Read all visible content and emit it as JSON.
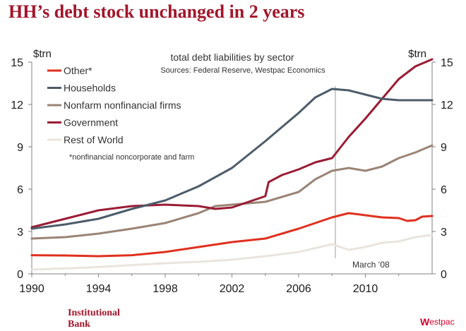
{
  "headline": "HH’s debt stock unchanged in 2 years",
  "footer": {
    "line1": "Institutional",
    "line2": "Bank",
    "logo_mark": "W",
    "logo_text": "estpac"
  },
  "colors": {
    "headline": "#a3162b",
    "brand": "#d5002b"
  },
  "chart_data": {
    "type": "line",
    "title": "total debt liabilities by sector",
    "subtitle": "Sources: Federal Reserve, Westpac Economics",
    "ylabel_left": "$trn",
    "ylabel_right": "$trn",
    "note": "*nonfinancial noncorporate and farm",
    "annotation": "March ‘08",
    "annotation_x": 2008.2,
    "xlim": [
      1990,
      2014
    ],
    "ylim": [
      0,
      15
    ],
    "xticks": [
      "1990",
      "1994",
      "1998",
      "2002",
      "2006",
      "2010"
    ],
    "yticks": [
      "0",
      "3",
      "6",
      "9",
      "12",
      "15"
    ],
    "grid": false,
    "legend_position": "top-left",
    "series": [
      {
        "name": "Other*",
        "color": "#e0301e",
        "points": [
          [
            1990,
            1.32
          ],
          [
            1992,
            1.3
          ],
          [
            1994,
            1.25
          ],
          [
            1996,
            1.32
          ],
          [
            1998,
            1.55
          ],
          [
            2000,
            1.9
          ],
          [
            2002,
            2.25
          ],
          [
            2004,
            2.5
          ],
          [
            2006,
            3.2
          ],
          [
            2008,
            4.0
          ],
          [
            2009,
            4.3
          ],
          [
            2010,
            4.15
          ],
          [
            2011,
            4.0
          ],
          [
            2012,
            3.95
          ],
          [
            2012.5,
            3.75
          ],
          [
            2013,
            3.8
          ],
          [
            2013.4,
            4.05
          ],
          [
            2014,
            4.1
          ]
        ]
      },
      {
        "name": "Households",
        "color": "#4d5c6a",
        "points": [
          [
            1990,
            3.2
          ],
          [
            1992,
            3.5
          ],
          [
            1994,
            3.9
          ],
          [
            1996,
            4.6
          ],
          [
            1998,
            5.2
          ],
          [
            2000,
            6.2
          ],
          [
            2002,
            7.5
          ],
          [
            2004,
            9.4
          ],
          [
            2006,
            11.4
          ],
          [
            2007,
            12.5
          ],
          [
            2008,
            13.1
          ],
          [
            2009,
            13.0
          ],
          [
            2010,
            12.7
          ],
          [
            2011,
            12.4
          ],
          [
            2012,
            12.3
          ],
          [
            2013,
            12.3
          ],
          [
            2014,
            12.3
          ]
        ]
      },
      {
        "name": "Nonfarm nonfinancial firms",
        "color": "#9a8475",
        "points": [
          [
            1990,
            2.5
          ],
          [
            1992,
            2.6
          ],
          [
            1994,
            2.85
          ],
          [
            1996,
            3.2
          ],
          [
            1998,
            3.6
          ],
          [
            2000,
            4.3
          ],
          [
            2001,
            4.8
          ],
          [
            2002,
            4.9
          ],
          [
            2004,
            5.1
          ],
          [
            2006,
            5.8
          ],
          [
            2007,
            6.7
          ],
          [
            2008,
            7.3
          ],
          [
            2009,
            7.5
          ],
          [
            2010,
            7.3
          ],
          [
            2011,
            7.6
          ],
          [
            2012,
            8.2
          ],
          [
            2013,
            8.6
          ],
          [
            2014,
            9.1
          ]
        ]
      },
      {
        "name": "Government",
        "color": "#9a1c34",
        "points": [
          [
            1990,
            3.3
          ],
          [
            1992,
            3.9
          ],
          [
            1994,
            4.5
          ],
          [
            1996,
            4.8
          ],
          [
            1998,
            4.9
          ],
          [
            2000,
            4.8
          ],
          [
            2001,
            4.6
          ],
          [
            2002,
            4.7
          ],
          [
            2003,
            5.1
          ],
          [
            2004,
            5.5
          ],
          [
            2004.2,
            6.5
          ],
          [
            2005,
            7.0
          ],
          [
            2006,
            7.4
          ],
          [
            2007,
            7.9
          ],
          [
            2008,
            8.2
          ],
          [
            2009,
            9.7
          ],
          [
            2010,
            11.0
          ],
          [
            2011,
            12.4
          ],
          [
            2012,
            13.8
          ],
          [
            2013,
            14.7
          ],
          [
            2014,
            15.2
          ]
        ]
      },
      {
        "name": "Rest of World",
        "color": "#e9e5de",
        "points": [
          [
            1990,
            0.3
          ],
          [
            1992,
            0.38
          ],
          [
            1994,
            0.48
          ],
          [
            1996,
            0.62
          ],
          [
            1998,
            0.75
          ],
          [
            2000,
            0.85
          ],
          [
            2002,
            1.0
          ],
          [
            2004,
            1.25
          ],
          [
            2006,
            1.55
          ],
          [
            2008,
            2.1
          ],
          [
            2009,
            1.7
          ],
          [
            2010,
            1.9
          ],
          [
            2011,
            2.2
          ],
          [
            2012,
            2.3
          ],
          [
            2013,
            2.6
          ],
          [
            2014,
            2.75
          ]
        ]
      }
    ]
  }
}
